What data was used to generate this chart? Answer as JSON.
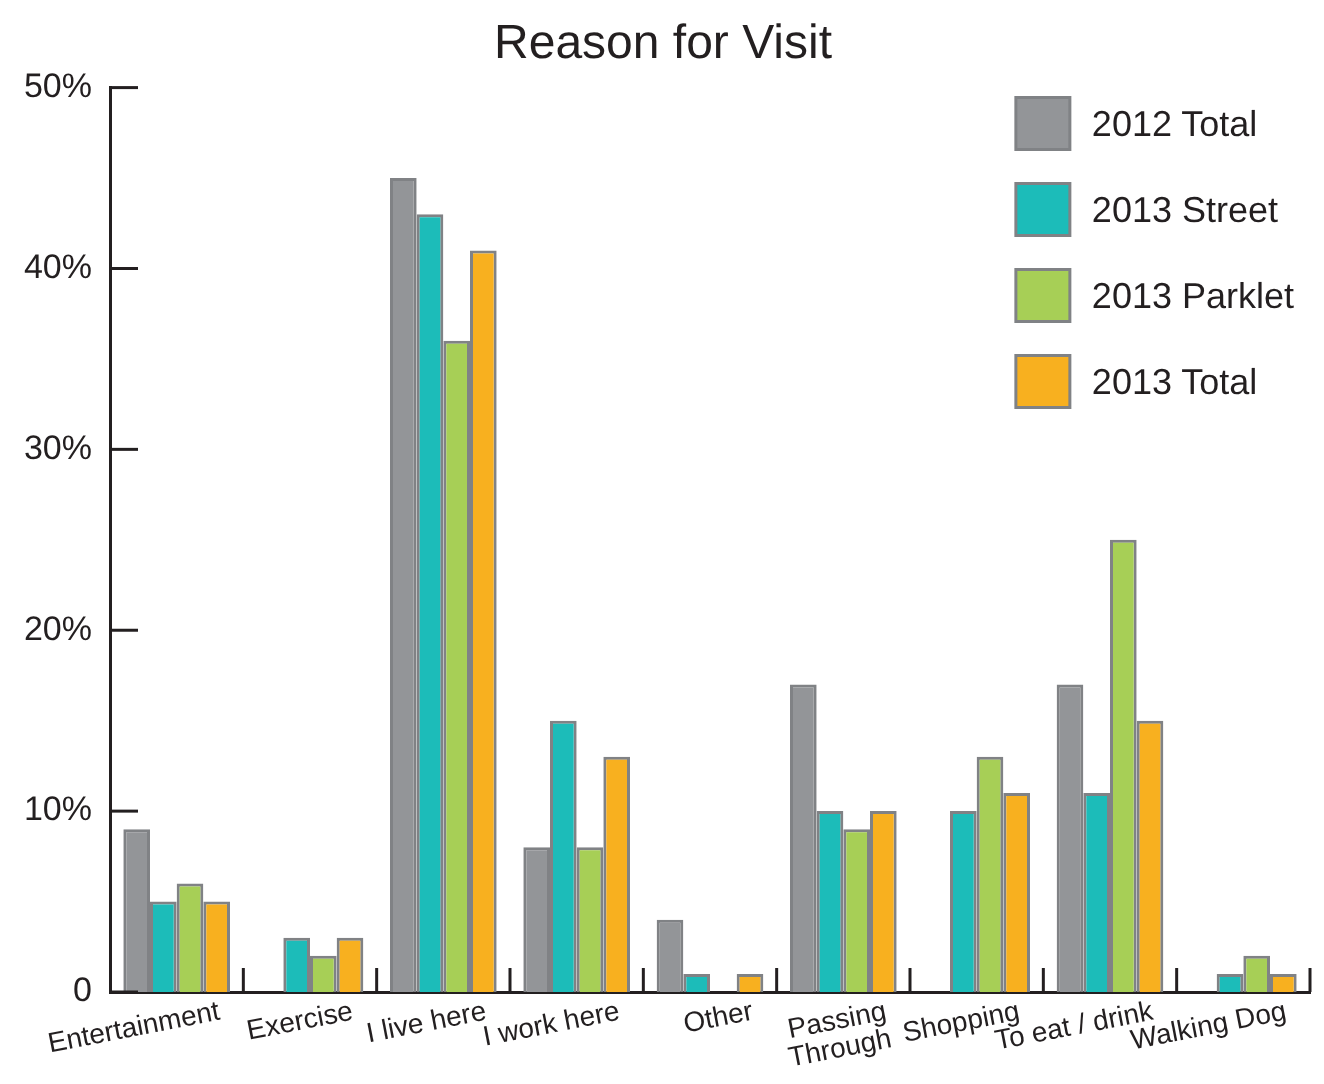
{
  "chart_data": {
    "type": "bar",
    "title": "Reason for Visit",
    "categories": [
      "Entertainment",
      "Exercise",
      "I live here",
      "I work here",
      "Other",
      "Passing\nThrough",
      "Shopping",
      "To eat / drink",
      "Walking Dog"
    ],
    "series": [
      {
        "name": "2012 Total",
        "color": "#939598",
        "values": [
          9,
          null,
          45,
          8,
          4,
          17,
          null,
          17,
          null
        ]
      },
      {
        "name": "2013 Street",
        "color": "#1cbcb9",
        "values": [
          5,
          3,
          43,
          15,
          1,
          10,
          10,
          11,
          1
        ]
      },
      {
        "name": "2013 Parklet",
        "color": "#a7cf56",
        "values": [
          6,
          2,
          36,
          8,
          null,
          9,
          13,
          25,
          2
        ]
      },
      {
        "name": "2013 Total",
        "color": "#f8b01f",
        "values": [
          5,
          3,
          41,
          13,
          1,
          10,
          11,
          15,
          1
        ]
      }
    ],
    "ylim": [
      0,
      50
    ],
    "yticks": [
      0,
      {
        "value": 10,
        "label": "10%"
      },
      {
        "value": 20,
        "label": "20%"
      },
      {
        "value": 30,
        "label": "30%"
      },
      {
        "value": 40,
        "label": "40%"
      },
      {
        "value": 50,
        "label": "50%"
      }
    ],
    "legend": "top right"
  }
}
